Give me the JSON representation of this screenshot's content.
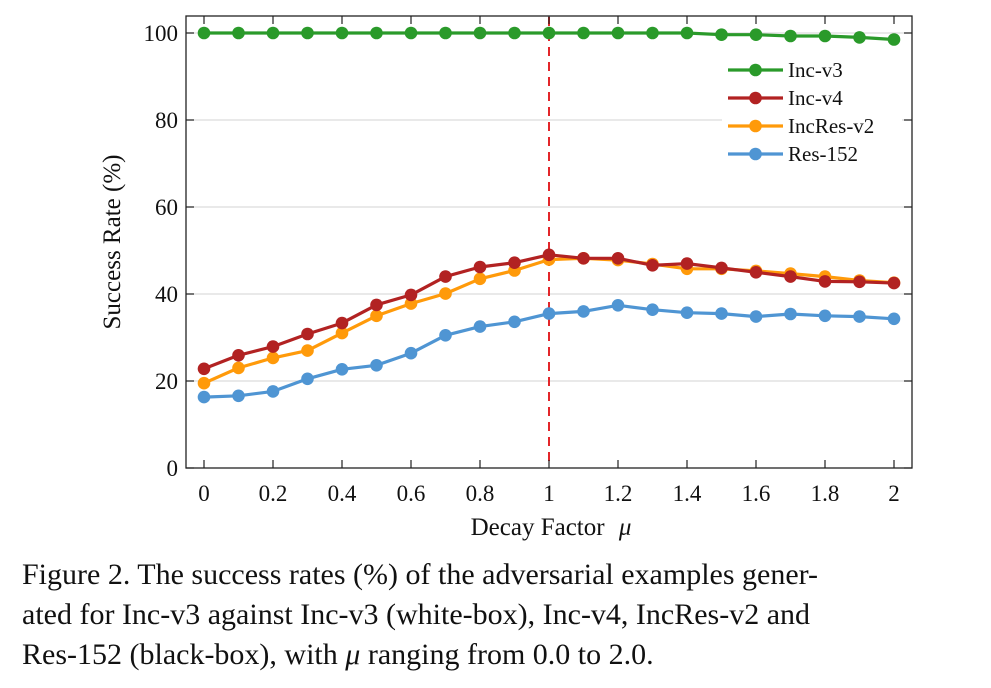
{
  "chart_data": {
    "type": "line",
    "title": "",
    "xlabel": "Decay Factor",
    "xlabel_symbol": "μ",
    "ylabel": "Success Rate (%)",
    "xlim": [
      0,
      2
    ],
    "ylim": [
      0,
      100
    ],
    "xticks": [
      0,
      0.2,
      0.4,
      0.6,
      0.8,
      1,
      1.2,
      1.4,
      1.6,
      1.8,
      2
    ],
    "xtick_labels": [
      "0",
      "0.2",
      "0.4",
      "0.6",
      "0.8",
      "1",
      "1.2",
      "1.4",
      "1.6",
      "1.8",
      "2"
    ],
    "yticks": [
      0,
      20,
      40,
      60,
      80,
      100
    ],
    "ytick_labels": [
      "0",
      "20",
      "40",
      "60",
      "80",
      "100"
    ],
    "grid": "horizontal",
    "legend_position": "top-right",
    "reference_line": {
      "axis": "x",
      "value": 1,
      "style": "dashed",
      "color": "#e3262a"
    },
    "x": [
      0,
      0.1,
      0.2,
      0.3,
      0.4,
      0.5,
      0.6,
      0.7,
      0.8,
      0.9,
      1.0,
      1.1,
      1.2,
      1.3,
      1.4,
      1.5,
      1.6,
      1.7,
      1.8,
      1.9,
      2.0
    ],
    "series": [
      {
        "name": "Inc-v3",
        "color": "#2a9a2a",
        "values": [
          100,
          100,
          100,
          100,
          100,
          100,
          100,
          100,
          100,
          100,
          100,
          100,
          100,
          100,
          100,
          99.6,
          99.6,
          99.3,
          99.3,
          99.0,
          98.5
        ]
      },
      {
        "name": "Inc-v4",
        "color": "#b22222",
        "values": [
          22.8,
          25.9,
          27.9,
          30.8,
          33.3,
          37.5,
          39.8,
          44.0,
          46.2,
          47.2,
          49.0,
          48.2,
          48.2,
          46.6,
          47.0,
          46.0,
          45.0,
          44.0,
          42.9,
          42.8,
          42.5
        ]
      },
      {
        "name": "IncRes-v2",
        "color": "#ff9a0a",
        "values": [
          19.5,
          23.0,
          25.3,
          27.0,
          31.0,
          35.0,
          37.8,
          40.1,
          43.5,
          45.4,
          47.9,
          48.2,
          47.8,
          46.9,
          45.8,
          45.8,
          45.3,
          44.7,
          44.0,
          43.1,
          42.6
        ]
      },
      {
        "name": "Res-152",
        "color": "#4f95d3",
        "values": [
          16.3,
          16.6,
          17.6,
          20.5,
          22.7,
          23.6,
          26.4,
          30.5,
          32.5,
          33.6,
          35.5,
          36.0,
          37.4,
          36.4,
          35.7,
          35.5,
          34.8,
          35.4,
          35.0,
          34.8,
          34.3
        ]
      }
    ]
  },
  "caption": {
    "line1": "Figure 2. The success rates (%) of the adversarial examples gener-",
    "line2": "ated for Inc-v3 against Inc-v3 (white-box), Inc-v4, IncRes-v2 and",
    "line3_before": "Res-152 (black-box), with ",
    "line3_symbol": "μ",
    "line3_after": " ranging from 0.0 to 2.0."
  }
}
